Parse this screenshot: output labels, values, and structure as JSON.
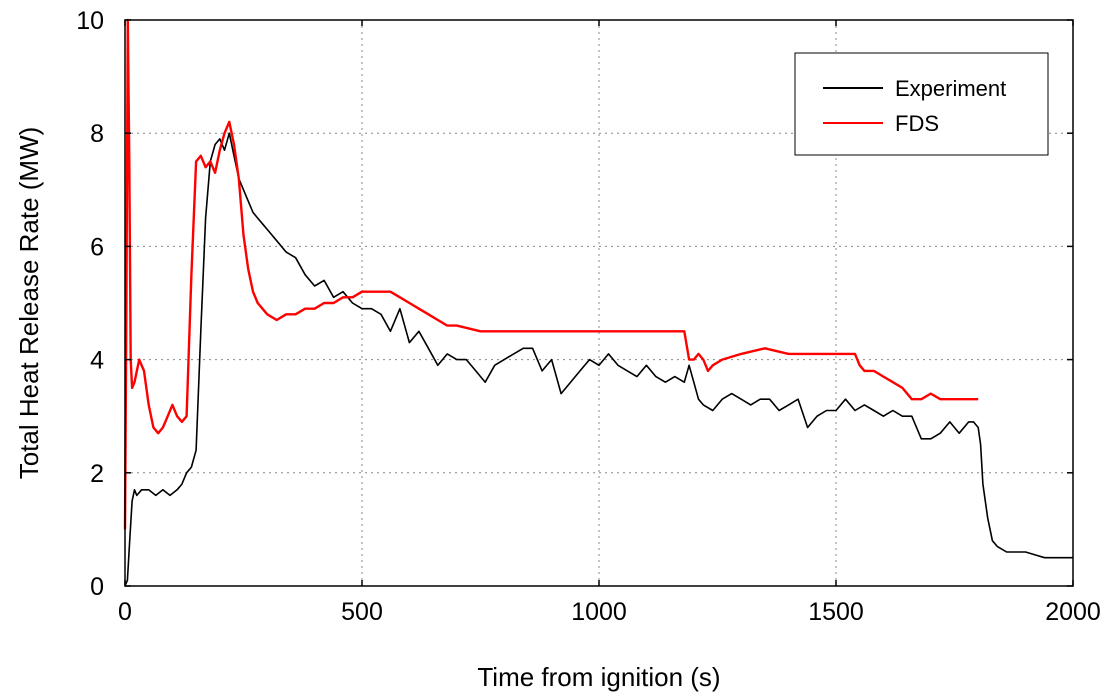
{
  "chart_data": {
    "type": "line",
    "title": "",
    "xlabel": "Time from ignition (s)",
    "ylabel": "Total Heat Release Rate (MW)",
    "xlim": [
      0,
      2000
    ],
    "ylim": [
      0,
      10
    ],
    "xticks": [
      0,
      500,
      1000,
      1500,
      2000
    ],
    "yticks": [
      0,
      2,
      4,
      6,
      8,
      10
    ],
    "grid": true,
    "legend_position": "top-right",
    "series": [
      {
        "name": "Experiment",
        "color": "#000000",
        "x": [
          0,
          5,
          10,
          15,
          20,
          25,
          35,
          50,
          65,
          80,
          95,
          110,
          120,
          130,
          140,
          150,
          160,
          170,
          180,
          190,
          200,
          210,
          220,
          230,
          240,
          250,
          260,
          270,
          280,
          290,
          300,
          320,
          340,
          360,
          380,
          400,
          420,
          440,
          460,
          480,
          500,
          520,
          540,
          560,
          580,
          600,
          620,
          640,
          660,
          680,
          700,
          720,
          740,
          760,
          780,
          800,
          820,
          840,
          860,
          880,
          900,
          920,
          940,
          960,
          980,
          1000,
          1020,
          1040,
          1060,
          1080,
          1100,
          1120,
          1140,
          1160,
          1180,
          1190,
          1200,
          1210,
          1220,
          1240,
          1260,
          1280,
          1300,
          1320,
          1340,
          1360,
          1380,
          1400,
          1420,
          1440,
          1460,
          1480,
          1500,
          1520,
          1540,
          1560,
          1580,
          1600,
          1620,
          1640,
          1660,
          1680,
          1700,
          1720,
          1740,
          1760,
          1780,
          1790,
          1800,
          1805,
          1810,
          1820,
          1830,
          1840,
          1860,
          1880,
          1900,
          1920,
          1940,
          1960,
          1980,
          2000
        ],
        "y": [
          0.0,
          0.1,
          0.8,
          1.5,
          1.7,
          1.6,
          1.7,
          1.7,
          1.6,
          1.7,
          1.6,
          1.7,
          1.8,
          2.0,
          2.1,
          2.4,
          4.5,
          6.5,
          7.5,
          7.8,
          7.9,
          7.7,
          8.0,
          7.6,
          7.2,
          7.0,
          6.8,
          6.6,
          6.5,
          6.4,
          6.3,
          6.1,
          5.9,
          5.8,
          5.5,
          5.3,
          5.4,
          5.1,
          5.2,
          5.0,
          4.9,
          4.9,
          4.8,
          4.5,
          4.9,
          4.3,
          4.5,
          4.2,
          3.9,
          4.1,
          4.0,
          4.0,
          3.8,
          3.6,
          3.9,
          4.0,
          4.1,
          4.2,
          4.2,
          3.8,
          4.0,
          3.4,
          3.6,
          3.8,
          4.0,
          3.9,
          4.1,
          3.9,
          3.8,
          3.7,
          3.9,
          3.7,
          3.6,
          3.7,
          3.6,
          3.9,
          3.6,
          3.3,
          3.2,
          3.1,
          3.3,
          3.4,
          3.3,
          3.2,
          3.3,
          3.3,
          3.1,
          3.2,
          3.3,
          2.8,
          3.0,
          3.1,
          3.1,
          3.3,
          3.1,
          3.2,
          3.1,
          3.0,
          3.1,
          3.0,
          3.0,
          2.6,
          2.6,
          2.7,
          2.9,
          2.7,
          2.9,
          2.9,
          2.8,
          2.5,
          1.8,
          1.2,
          0.8,
          0.7,
          0.6,
          0.6,
          0.6,
          0.55,
          0.5,
          0.5,
          0.5,
          0.5
        ]
      },
      {
        "name": "FDS",
        "color": "#ff0000",
        "x": [
          0,
          3,
          6,
          9,
          12,
          15,
          20,
          30,
          40,
          50,
          60,
          70,
          80,
          90,
          100,
          110,
          120,
          130,
          140,
          150,
          160,
          170,
          180,
          190,
          200,
          210,
          220,
          230,
          240,
          250,
          260,
          270,
          280,
          290,
          300,
          320,
          340,
          360,
          380,
          400,
          420,
          440,
          460,
          480,
          500,
          520,
          540,
          560,
          580,
          600,
          620,
          640,
          660,
          680,
          700,
          750,
          800,
          850,
          900,
          950,
          1000,
          1050,
          1100,
          1150,
          1180,
          1190,
          1200,
          1210,
          1220,
          1230,
          1240,
          1260,
          1300,
          1350,
          1400,
          1450,
          1500,
          1540,
          1550,
          1560,
          1580,
          1600,
          1620,
          1640,
          1660,
          1680,
          1700,
          1720,
          1750,
          1780,
          1800
        ],
        "y": [
          1.0,
          5.0,
          10.0,
          7.5,
          4.0,
          3.5,
          3.6,
          4.0,
          3.8,
          3.2,
          2.8,
          2.7,
          2.8,
          3.0,
          3.2,
          3.0,
          2.9,
          3.0,
          5.5,
          7.5,
          7.6,
          7.4,
          7.5,
          7.3,
          7.7,
          8.0,
          8.2,
          7.8,
          7.2,
          6.2,
          5.6,
          5.2,
          5.0,
          4.9,
          4.8,
          4.7,
          4.8,
          4.8,
          4.9,
          4.9,
          5.0,
          5.0,
          5.1,
          5.1,
          5.2,
          5.2,
          5.2,
          5.2,
          5.1,
          5.0,
          4.9,
          4.8,
          4.7,
          4.6,
          4.6,
          4.5,
          4.5,
          4.5,
          4.5,
          4.5,
          4.5,
          4.5,
          4.5,
          4.5,
          4.5,
          4.0,
          4.0,
          4.1,
          4.0,
          3.8,
          3.9,
          4.0,
          4.1,
          4.2,
          4.1,
          4.1,
          4.1,
          4.1,
          3.9,
          3.8,
          3.8,
          3.7,
          3.6,
          3.5,
          3.3,
          3.3,
          3.4,
          3.3,
          3.3,
          3.3,
          3.3
        ]
      }
    ]
  }
}
